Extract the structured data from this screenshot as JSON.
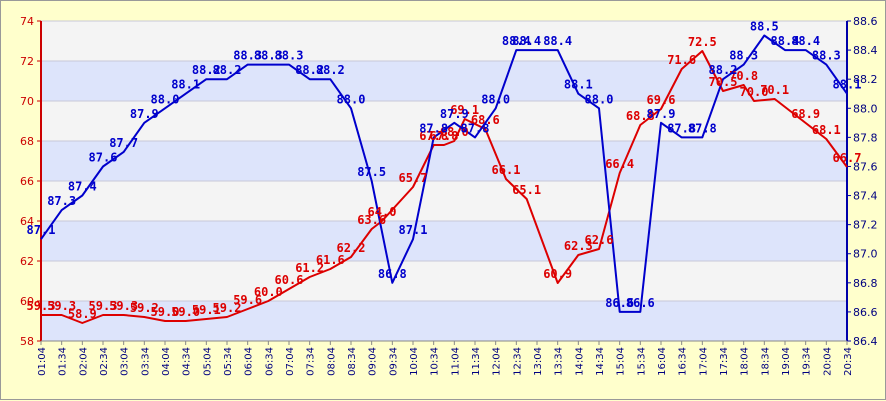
{
  "chart_data": {
    "type": "line",
    "title": "",
    "xlabel": "",
    "ylabel": "",
    "y2label": "",
    "grid": true,
    "ylim": [
      58,
      74
    ],
    "y_ticks": [
      "58",
      "60",
      "62",
      "64",
      "66",
      "68",
      "70",
      "72",
      "74"
    ],
    "y2lim": [
      86.4,
      88.6
    ],
    "y2_ticks": [
      "86.4",
      "86.6",
      "86.8",
      "87.0",
      "87.2",
      "87.4",
      "87.6",
      "87.8",
      "88.0",
      "88.2",
      "88.4",
      "88.6"
    ],
    "x_ticks": [
      "01:04",
      "01:34",
      "02:04",
      "02:34",
      "03:04",
      "03:34",
      "04:04",
      "04:34",
      "05:04",
      "05:34",
      "06:04",
      "06:34",
      "07:04",
      "07:34",
      "08:04",
      "08:34",
      "09:04",
      "09:34",
      "10:04",
      "10:34",
      "11:04",
      "11:34",
      "12:04",
      "12:34",
      "13:04",
      "13:34",
      "14:04",
      "14:34",
      "15:04",
      "15:34",
      "16:04",
      "16:34",
      "17:04",
      "17:34",
      "18:04",
      "18:34",
      "19:04",
      "19:34",
      "20:04",
      "20:34"
    ],
    "colors": {
      "red": "#dd0000",
      "blue": "#0000cc",
      "band_blue": "#dde4fb",
      "band_light": "#f4f4f4",
      "left_axis": "#cc0000",
      "right_axis": "#0000aa"
    },
    "series": [
      {
        "axis": "left",
        "color": "#dd0000",
        "points": [
          [
            "01:04",
            59.3
          ],
          [
            "01:34",
            59.3
          ],
          [
            "02:04",
            58.9
          ],
          [
            "02:34",
            59.3
          ],
          [
            "03:04",
            59.3
          ],
          [
            "03:34",
            59.2
          ],
          [
            "04:04",
            59.0
          ],
          [
            "04:34",
            59.0
          ],
          [
            "05:04",
            59.1
          ],
          [
            "05:34",
            59.2
          ],
          [
            "06:04",
            59.6
          ],
          [
            "06:34",
            60.0
          ],
          [
            "07:04",
            60.6
          ],
          [
            "07:34",
            61.2
          ],
          [
            "08:04",
            61.6
          ],
          [
            "08:34",
            62.2
          ],
          [
            "09:04",
            63.6
          ],
          [
            "09:19",
            64.0
          ],
          [
            "10:04",
            65.7
          ],
          [
            "10:34",
            67.8
          ],
          [
            "10:49",
            67.8
          ],
          [
            "11:04",
            68.0
          ],
          [
            "11:19",
            69.1
          ],
          [
            "11:49",
            68.6
          ],
          [
            "12:19",
            66.1
          ],
          [
            "12:49",
            65.1
          ],
          [
            "13:34",
            60.9
          ],
          [
            "14:04",
            62.3
          ],
          [
            "14:34",
            62.6
          ],
          [
            "15:04",
            66.4
          ],
          [
            "15:34",
            68.8
          ],
          [
            "16:04",
            69.6
          ],
          [
            "16:34",
            71.6
          ],
          [
            "17:04",
            72.5
          ],
          [
            "17:34",
            70.5
          ],
          [
            "18:04",
            70.8
          ],
          [
            "18:19",
            70.0
          ],
          [
            "18:49",
            70.1
          ],
          [
            "19:34",
            68.9
          ],
          [
            "20:04",
            68.1
          ],
          [
            "20:34",
            66.7
          ]
        ]
      },
      {
        "axis": "right",
        "color": "#0000cc",
        "points": [
          [
            "01:04",
            87.1
          ],
          [
            "01:34",
            87.3
          ],
          [
            "02:04",
            87.4
          ],
          [
            "02:34",
            87.6
          ],
          [
            "03:04",
            87.7
          ],
          [
            "03:34",
            87.9
          ],
          [
            "04:04",
            88.0
          ],
          [
            "04:34",
            88.1
          ],
          [
            "05:04",
            88.2
          ],
          [
            "05:34",
            88.2
          ],
          [
            "06:04",
            88.3
          ],
          [
            "06:34",
            88.3
          ],
          [
            "07:04",
            88.3
          ],
          [
            "07:34",
            88.2
          ],
          [
            "08:04",
            88.2
          ],
          [
            "08:34",
            88.0
          ],
          [
            "09:04",
            87.5
          ],
          [
            "09:34",
            86.8
          ],
          [
            "10:04",
            87.1
          ],
          [
            "10:34",
            87.8
          ],
          [
            "11:04",
            87.9
          ],
          [
            "11:34",
            87.8
          ],
          [
            "12:04",
            88.0
          ],
          [
            "12:34",
            88.4
          ],
          [
            "12:49",
            88.4
          ],
          [
            "13:34",
            88.4
          ],
          [
            "14:04",
            88.1
          ],
          [
            "14:34",
            88.0
          ],
          [
            "15:04",
            86.6
          ],
          [
            "15:34",
            86.6
          ],
          [
            "16:04",
            87.9
          ],
          [
            "16:34",
            87.8
          ],
          [
            "17:04",
            87.8
          ],
          [
            "17:34",
            88.2
          ],
          [
            "18:04",
            88.3
          ],
          [
            "18:34",
            88.5
          ],
          [
            "19:04",
            88.4
          ],
          [
            "19:34",
            88.4
          ],
          [
            "20:04",
            88.3
          ],
          [
            "20:34",
            88.1
          ]
        ]
      }
    ]
  }
}
